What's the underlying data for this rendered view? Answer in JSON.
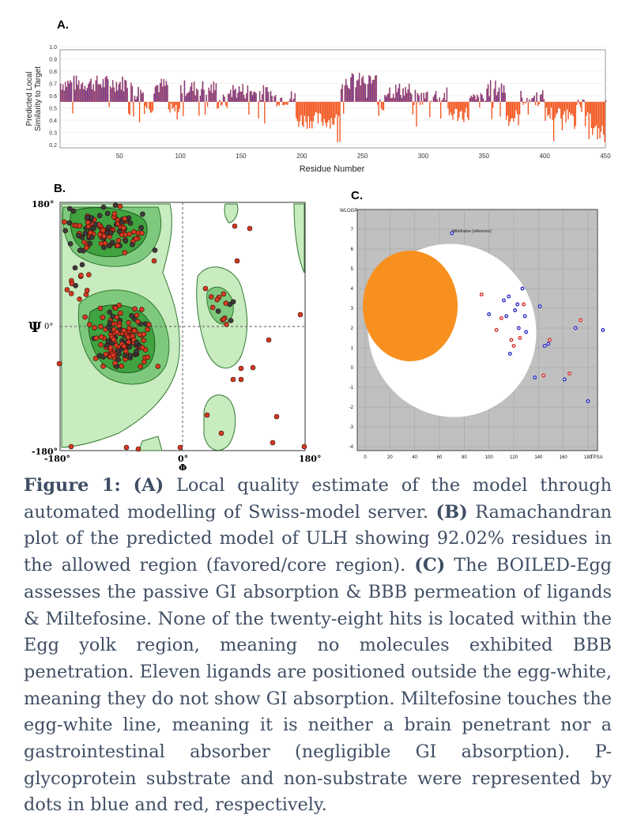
{
  "panel_labels": {
    "a": "A.",
    "b": "B.",
    "c": "C."
  },
  "panel_a": {
    "ylabel_line1": "Predicted Local",
    "ylabel_line2": "Similarity to Target",
    "xlabel": "Residue Number",
    "y_ticks": [
      "1.0",
      "0.9",
      "0.8",
      "0.7",
      "0.6",
      "0.5",
      "0.4",
      "0.3",
      "0.2"
    ],
    "x_ticks": [
      "50",
      "100",
      "150",
      "200",
      "250",
      "300",
      "350",
      "400",
      "450"
    ],
    "colors": {
      "above": "#6a3d9a",
      "above_edge": "#d9533b",
      "below": "#f2531b"
    }
  },
  "panel_b": {
    "y_top": "180°",
    "y_bottom": "-180°",
    "psi": "Ψ",
    "psi_zero": "0°",
    "x_left": "-180°",
    "x_mid": "0°",
    "x_right": "180°",
    "phi": "Φ",
    "colors": {
      "core": "#3fa33f",
      "allowed": "#7ec97e",
      "generous": "#c9ebc0",
      "dot": "#d63a1f"
    }
  },
  "panel_c": {
    "ylabel": "WLOGP",
    "xlabel": "TPSA",
    "y_ticks": [
      "7",
      "6",
      "5",
      "4",
      "3",
      "2",
      "1",
      "0",
      "-1",
      "-2",
      "-3",
      "-4"
    ],
    "x_ticks": [
      "0",
      "20",
      "40",
      "60",
      "80",
      "100",
      "120",
      "140",
      "160",
      "180"
    ],
    "reference_label": "Miltefosine (reference)",
    "colors": {
      "background": "#c0c0c0",
      "white": "#ffffff",
      "yolk": "#f7901e",
      "pgp_plus": "#2a2ac4",
      "pgp_minus": "#d42a2a"
    }
  },
  "caption": {
    "fig_label": "Figure 1:",
    "a_label": "(A)",
    "a_text": " Local quality estimate of the model through automated modelling of Swiss-model server. ",
    "b_label": "(B)",
    "b_text": " Ramachandran plot of the predicted model of ULH showing 92.02% residues in the allowed region (favored/core region). ",
    "c_label": "(C)",
    "c_text": " The BOILED-Egg assesses the passive GI absorption & BBB permeation of ligands & Miltefosine. None of the twenty-eight hits is located within the Egg yolk region, meaning no molecules exhibited BBB penetration. Eleven ligands are positioned outside the egg-white, meaning they do not show GI absorption. Miltefosine touches the egg-white line, meaning it is neither a brain penetrant nor a gastrointestinal absorber (negligible GI absorption). P-glycoprotein substrate and non-substrate were represented by dots in blue and red, respectively."
  }
}
